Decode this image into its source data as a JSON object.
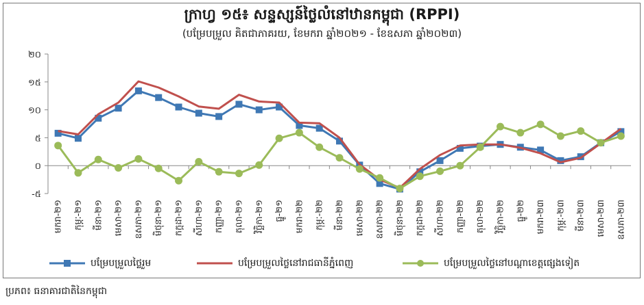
{
  "header": {
    "title": "ក្រាហ្វ ១៥៖ សន្ទស្សន៍ថ្លៃលំនៅឋានកម្ពុជា (RPPI)",
    "subtitle": "(បម្រែបម្រួល គិតជាភាគរយ, ខែមករា ឆ្នាំ២០២១ - ខែឧសភា ឆ្នាំ២០២៣)"
  },
  "source": "ប្រភព៖ ធនាគារជាតិនៃកម្ពុជា",
  "chart_data": {
    "type": "line",
    "categories": [
      "មករា-២១",
      "កុម្ភៈ-២១",
      "មីនា-២១",
      "មេសា-២១",
      "ឧសភា-២១",
      "មិថុនា-២១",
      "កក្កដា-២១",
      "សីហា-២១",
      "កញ្ញា-២១",
      "តុលា-២១",
      "វិច្ឆិកា-២១",
      "ធ្នូ-២១",
      "មករា-២២",
      "កុម្ភៈ-២២",
      "មីនា-២២",
      "មេសា-២២",
      "ឧសភា-២២",
      "មិថុនា-២២",
      "កក្កដា-២២",
      "សីហា-២២",
      "កញ្ញា-២២",
      "តុលា-២២",
      "វិច្ឆិកា-២២",
      "ធ្នូ-២២",
      "មករា-២៣",
      "កុម្ភៈ-២៣",
      "មីនា-២៣",
      "មេសា-២៣",
      "ឧសភា-២៣"
    ],
    "ylim": [
      -5,
      20
    ],
    "yticks": [
      -5,
      0,
      5,
      10,
      15,
      20
    ],
    "ytick_labels": [
      "-៥",
      "០",
      "៥",
      "១០",
      "១៥",
      "២០"
    ],
    "grid": false,
    "legend_position": "bottom",
    "series": [
      {
        "name": "បម្រែបម្រួលថ្លៃរួម",
        "color": "#3f78b4",
        "marker": "square",
        "values": [
          5.8,
          4.9,
          8.5,
          10.3,
          13.4,
          12.2,
          10.5,
          9.4,
          8.8,
          11.0,
          10.0,
          10.5,
          7.2,
          6.7,
          4.4,
          0.1,
          -3.2,
          -4.2,
          -1.1,
          0.9,
          3.1,
          3.5,
          3.8,
          3.3,
          2.8,
          0.9,
          1.6,
          4.1,
          6.1
        ]
      },
      {
        "name": "បម្រែបម្រួលថ្លៃនៅរាជធានីភ្នំពេញ",
        "color": "#c0504d",
        "marker": "none",
        "values": [
          6.2,
          5.6,
          9.2,
          11.3,
          15.1,
          14.0,
          12.4,
          10.6,
          10.2,
          12.7,
          11.5,
          11.3,
          7.7,
          7.6,
          5.0,
          0.2,
          -2.5,
          -4.0,
          -0.6,
          1.9,
          3.6,
          3.8,
          3.8,
          3.2,
          2.2,
          0.6,
          1.4,
          4.0,
          6.6
        ]
      },
      {
        "name": "បម្រែបម្រួលថ្លៃនៅបណ្ដាខេត្តផ្សេងទៀត",
        "color": "#9bbb59",
        "marker": "circle",
        "values": [
          3.6,
          -1.3,
          1.1,
          -0.4,
          1.2,
          -0.5,
          -2.7,
          0.7,
          -1.1,
          -1.4,
          0.1,
          4.9,
          5.9,
          3.3,
          1.4,
          -0.6,
          -2.2,
          -4.1,
          -1.9,
          -1.0,
          0.0,
          3.3,
          7.0,
          5.9,
          7.4,
          5.3,
          6.2,
          4.1,
          5.3
        ]
      }
    ]
  }
}
